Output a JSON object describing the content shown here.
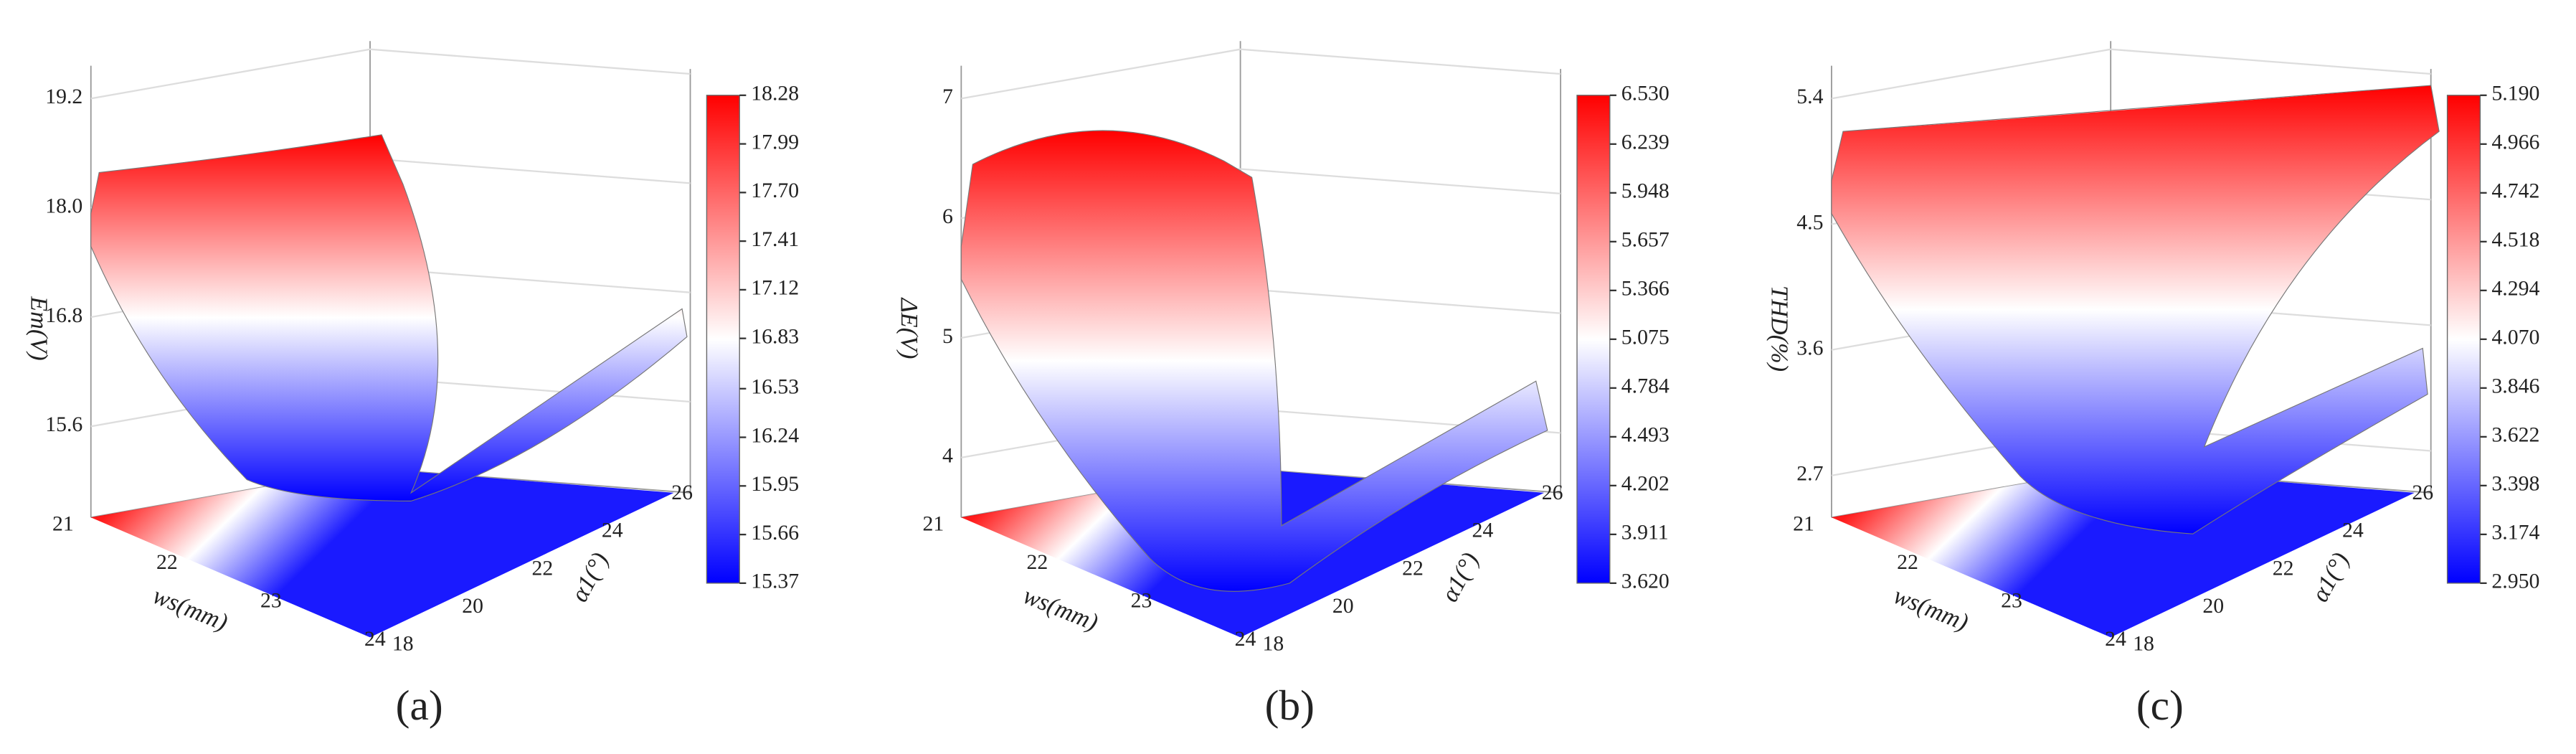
{
  "chart_data": [
    {
      "type": "surface",
      "caption": "(a)",
      "zlabel": "Em(V)",
      "xlabel": "ws(mm)",
      "ylabel": "α1(°)",
      "xticks": [
        21,
        22,
        23,
        24
      ],
      "yticks": [
        18,
        20,
        22,
        24,
        26
      ],
      "zlim": [
        14.6,
        19.2
      ],
      "zticks": [
        15.6,
        16.8,
        {
          "value": 18,
          "label": "18.0"
        },
        19.2
      ],
      "colorbar_ticks": [
        18.28,
        17.99,
        {
          "value": 17.7,
          "label": "17.70"
        },
        17.41,
        17.12,
        16.83,
        16.53,
        16.24,
        15.95,
        15.66,
        15.37
      ],
      "colors": [
        "#ff0000",
        "#ffffff",
        "#0000ff"
      ]
    },
    {
      "type": "surface",
      "caption": "(b)",
      "zlabel": "ΔE(V)",
      "xlabel": "ws(mm)",
      "ylabel": "α1(°)",
      "xticks": [
        21,
        22,
        23,
        24
      ],
      "yticks": [
        18,
        20,
        22,
        24,
        26
      ],
      "zlim": [
        3.5,
        7
      ],
      "zticks": [
        4,
        5,
        6,
        7
      ],
      "colorbar_ticks": [
        {
          "value": 6.53,
          "label": "6.530"
        },
        6.239,
        5.948,
        5.657,
        5.366,
        5.075,
        4.784,
        4.493,
        4.202,
        3.911,
        {
          "value": 3.62,
          "label": "3.620"
        }
      ],
      "colors": [
        "#ff0000",
        "#ffffff",
        "#0000ff"
      ]
    },
    {
      "type": "surface",
      "caption": "(c)",
      "zlabel": "THD(%)",
      "xlabel": "ws(mm)",
      "ylabel": "α1(°)",
      "xticks": [
        21,
        22,
        23,
        24
      ],
      "yticks": [
        18,
        20,
        22,
        24,
        26
      ],
      "zlim": [
        2.4,
        5.4
      ],
      "zticks": [
        2.7,
        3.6,
        4.5,
        5.4
      ],
      "colorbar_ticks": [
        {
          "value": 5.19,
          "label": "5.190"
        },
        4.966,
        4.742,
        4.518,
        4.294,
        {
          "value": 4.07,
          "label": "4.070"
        },
        3.846,
        3.622,
        3.398,
        3.174,
        {
          "value": 2.95,
          "label": "2.950"
        }
      ],
      "colors": [
        "#ff0000",
        "#ffffff",
        "#0000ff"
      ]
    }
  ]
}
